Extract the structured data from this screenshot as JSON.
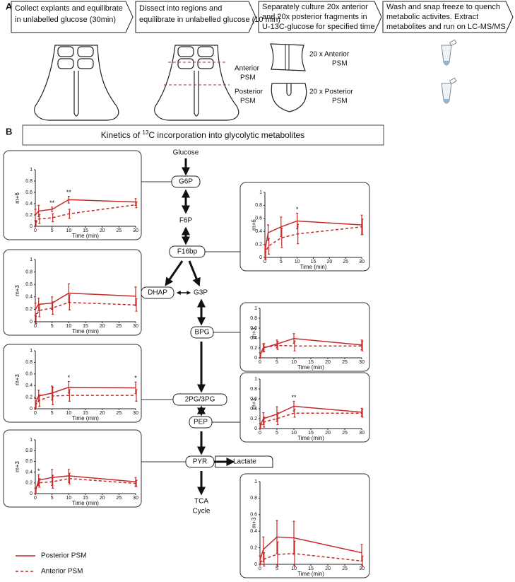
{
  "panel_a": {
    "label": "A",
    "steps": [
      [
        "Collect explants and equilibrate",
        "in unlabelled glucose (30min)"
      ],
      [
        "Dissect into regions and",
        "equilibrate in unlabelled glucose (10 min)"
      ],
      [
        "Separately culture 20x anterior",
        "and 20x posterior fragments in",
        "U-13C-glucose for specified time"
      ],
      [
        "Wash and snap freeze to quench",
        "metabolic activites. Extract",
        "metabolites and run on LC-MS/MS"
      ]
    ],
    "labels": [
      [
        "Anterior",
        "PSM"
      ],
      [
        "Posterior",
        "PSM"
      ],
      [
        "20 x Anterior",
        "PSM"
      ],
      [
        "20 x Posterior",
        "PSM"
      ]
    ]
  },
  "panel_b": {
    "label": "B",
    "title": [
      "Kinetics of ",
      "13",
      "C incorporation into glycolytic metabolites"
    ],
    "nodes": [
      "Glucose",
      "G6P",
      "F6P",
      "F16bp",
      "DHAP",
      "G3P",
      "BPG",
      "2PG/3PG",
      "PEP",
      "PYR",
      "Lactate"
    ],
    "tca": [
      "TCA",
      "Cycle"
    ]
  },
  "legend": [
    {
      "name": "Posterior PSM",
      "color": "#c62828",
      "dashed": false
    },
    {
      "name": "Anterior PSM",
      "color": "#c62828",
      "dashed": true
    }
  ],
  "chart_data": [
    {
      "type": "line",
      "ylabel": "m+6",
      "xlabel": "Time (min)",
      "x": [
        0,
        1,
        5,
        10,
        30
      ],
      "xlim": [
        0,
        30
      ],
      "ylim": [
        0,
        1
      ],
      "xticks": [
        0,
        5,
        10,
        15,
        20,
        25,
        30
      ],
      "yticks": [
        0,
        0.2,
        0.4,
        0.6,
        0.8,
        1
      ],
      "series": [
        {
          "values": [
            0.2,
            0.27,
            0.3,
            0.47,
            0.43
          ],
          "errors": [
            0.1,
            0.1,
            0.04,
            0.06,
            0.06
          ]
        },
        {
          "values": [
            0.05,
            0.13,
            0.15,
            0.22,
            0.38
          ],
          "errors": [
            0.05,
            0.08,
            0.07,
            0.08,
            0.05
          ]
        }
      ],
      "annotations": [
        {
          "x": 5,
          "label": "**"
        },
        {
          "x": 10,
          "label": "**"
        }
      ]
    },
    {
      "type": "line",
      "ylabel": "m+6",
      "xlabel": "Time (min)",
      "x": [
        0,
        1,
        5,
        10,
        30
      ],
      "xlim": [
        0,
        30
      ],
      "ylim": [
        0,
        1
      ],
      "xticks": [
        0,
        5,
        10,
        15,
        20,
        25,
        30
      ],
      "yticks": [
        0,
        0.2,
        0.4,
        0.6,
        0.8,
        1
      ],
      "series": [
        {
          "values": [
            0.1,
            0.38,
            0.47,
            0.56,
            0.5
          ],
          "errors": [
            0.1,
            0.12,
            0.15,
            0.12,
            0.15
          ]
        },
        {
          "values": [
            0.05,
            0.17,
            0.3,
            0.36,
            0.47
          ],
          "errors": [
            0.08,
            0.12,
            0.15,
            0.15,
            0.12
          ]
        }
      ],
      "annotations": [
        {
          "x": 10,
          "label": "*"
        }
      ]
    },
    {
      "type": "line",
      "ylabel": "m+3",
      "xlabel": "Time (min)",
      "x": [
        0,
        1,
        5,
        10,
        30
      ],
      "xlim": [
        0,
        30
      ],
      "ylim": [
        0,
        1
      ],
      "xticks": [
        0,
        5,
        10,
        15,
        20,
        25,
        30
      ],
      "yticks": [
        0,
        0.2,
        0.4,
        0.6,
        0.8,
        1
      ],
      "series": [
        {
          "values": [
            0.2,
            0.28,
            0.3,
            0.46,
            0.41
          ],
          "errors": [
            0.1,
            0.1,
            0.1,
            0.15,
            0.15
          ]
        },
        {
          "values": [
            0.05,
            0.18,
            0.22,
            0.31,
            0.27
          ],
          "errors": [
            0.08,
            0.1,
            0.1,
            0.12,
            0.1
          ]
        }
      ],
      "annotations": []
    },
    {
      "type": "line",
      "ylabel": "m+3",
      "xlabel": "Time (min)",
      "x": [
        0,
        1,
        5,
        10,
        30
      ],
      "xlim": [
        0,
        30
      ],
      "ylim": [
        0,
        1
      ],
      "xticks": [
        0,
        5,
        10,
        15,
        20,
        25,
        30
      ],
      "yticks": [
        0,
        0.2,
        0.4,
        0.6,
        0.8,
        1
      ],
      "series": [
        {
          "values": [
            0.05,
            0.2,
            0.28,
            0.39,
            0.26
          ],
          "errors": [
            0.05,
            0.08,
            0.08,
            0.1,
            0.1
          ]
        },
        {
          "values": [
            0.05,
            0.21,
            0.25,
            0.24,
            0.24
          ],
          "errors": [
            0.05,
            0.08,
            0.08,
            0.1,
            0.1
          ]
        }
      ],
      "annotations": []
    },
    {
      "type": "line",
      "ylabel": "m+3",
      "xlabel": "Time (min)",
      "x": [
        0,
        1,
        5,
        10,
        30
      ],
      "xlim": [
        0,
        30
      ],
      "ylim": [
        0,
        1
      ],
      "xticks": [
        0,
        5,
        10,
        15,
        20,
        25,
        30
      ],
      "yticks": [
        0,
        0.2,
        0.4,
        0.6,
        0.8,
        1
      ],
      "series": [
        {
          "values": [
            0.1,
            0.22,
            0.27,
            0.37,
            0.36
          ],
          "errors": [
            0.08,
            0.1,
            0.12,
            0.1,
            0.1
          ]
        },
        {
          "values": [
            0.05,
            0.14,
            0.22,
            0.23,
            0.23
          ],
          "errors": [
            0.05,
            0.1,
            0.15,
            0.1,
            0.1
          ]
        }
      ],
      "annotations": [
        {
          "x": 10,
          "label": "*"
        },
        {
          "x": 30,
          "label": "*"
        }
      ]
    },
    {
      "type": "line",
      "ylabel": "m+3",
      "xlabel": "Time (min)",
      "x": [
        0,
        1,
        5,
        10,
        30
      ],
      "xlim": [
        0,
        30
      ],
      "ylim": [
        0,
        1
      ],
      "xticks": [
        0,
        5,
        10,
        15,
        20,
        25,
        30
      ],
      "yticks": [
        0,
        0.2,
        0.4,
        0.6,
        0.8,
        1
      ],
      "series": [
        {
          "values": [
            0.05,
            0.2,
            0.29,
            0.45,
            0.33
          ],
          "errors": [
            0.05,
            0.12,
            0.15,
            0.1,
            0.08
          ]
        },
        {
          "values": [
            0.05,
            0.13,
            0.2,
            0.31,
            0.31
          ],
          "errors": [
            0.05,
            0.1,
            0.12,
            0.08,
            0.08
          ]
        }
      ],
      "annotations": [
        {
          "x": 10,
          "label": "**"
        }
      ]
    },
    {
      "type": "line",
      "ylabel": "m+3",
      "xlabel": "Time (min)",
      "x": [
        0,
        1,
        5,
        10,
        30
      ],
      "xlim": [
        0,
        30
      ],
      "ylim": [
        0,
        1
      ],
      "xticks": [
        0,
        5,
        10,
        15,
        20,
        25,
        30
      ],
      "yticks": [
        0,
        0.2,
        0.4,
        0.6,
        0.8,
        1
      ],
      "series": [
        {
          "values": [
            0.05,
            0.25,
            0.3,
            0.33,
            0.22
          ],
          "errors": [
            0.05,
            0.1,
            0.15,
            0.12,
            0.08
          ]
        },
        {
          "values": [
            0.05,
            0.2,
            0.22,
            0.28,
            0.19
          ],
          "errors": [
            0.05,
            0.08,
            0.12,
            0.1,
            0.06
          ]
        }
      ],
      "annotations": [
        {
          "x": 1,
          "label": "*"
        }
      ]
    },
    {
      "type": "line",
      "ylabel": "m+3",
      "xlabel": "Time (min)",
      "x": [
        0,
        1,
        5,
        10,
        30
      ],
      "xlim": [
        0,
        30
      ],
      "ylim": [
        0,
        1
      ],
      "xticks": [
        0,
        5,
        10,
        15,
        20,
        25,
        30
      ],
      "yticks": [
        0,
        0.2,
        0.4,
        0.6,
        0.8,
        1
      ],
      "series": [
        {
          "values": [
            0.05,
            0.18,
            0.33,
            0.32,
            0.14
          ],
          "errors": [
            0.05,
            0.15,
            0.2,
            0.2,
            0.1
          ]
        },
        {
          "values": [
            0.02,
            0.06,
            0.12,
            0.13,
            0.04
          ],
          "errors": [
            0.02,
            0.08,
            0.15,
            0.15,
            0.06
          ]
        }
      ],
      "annotations": []
    }
  ]
}
